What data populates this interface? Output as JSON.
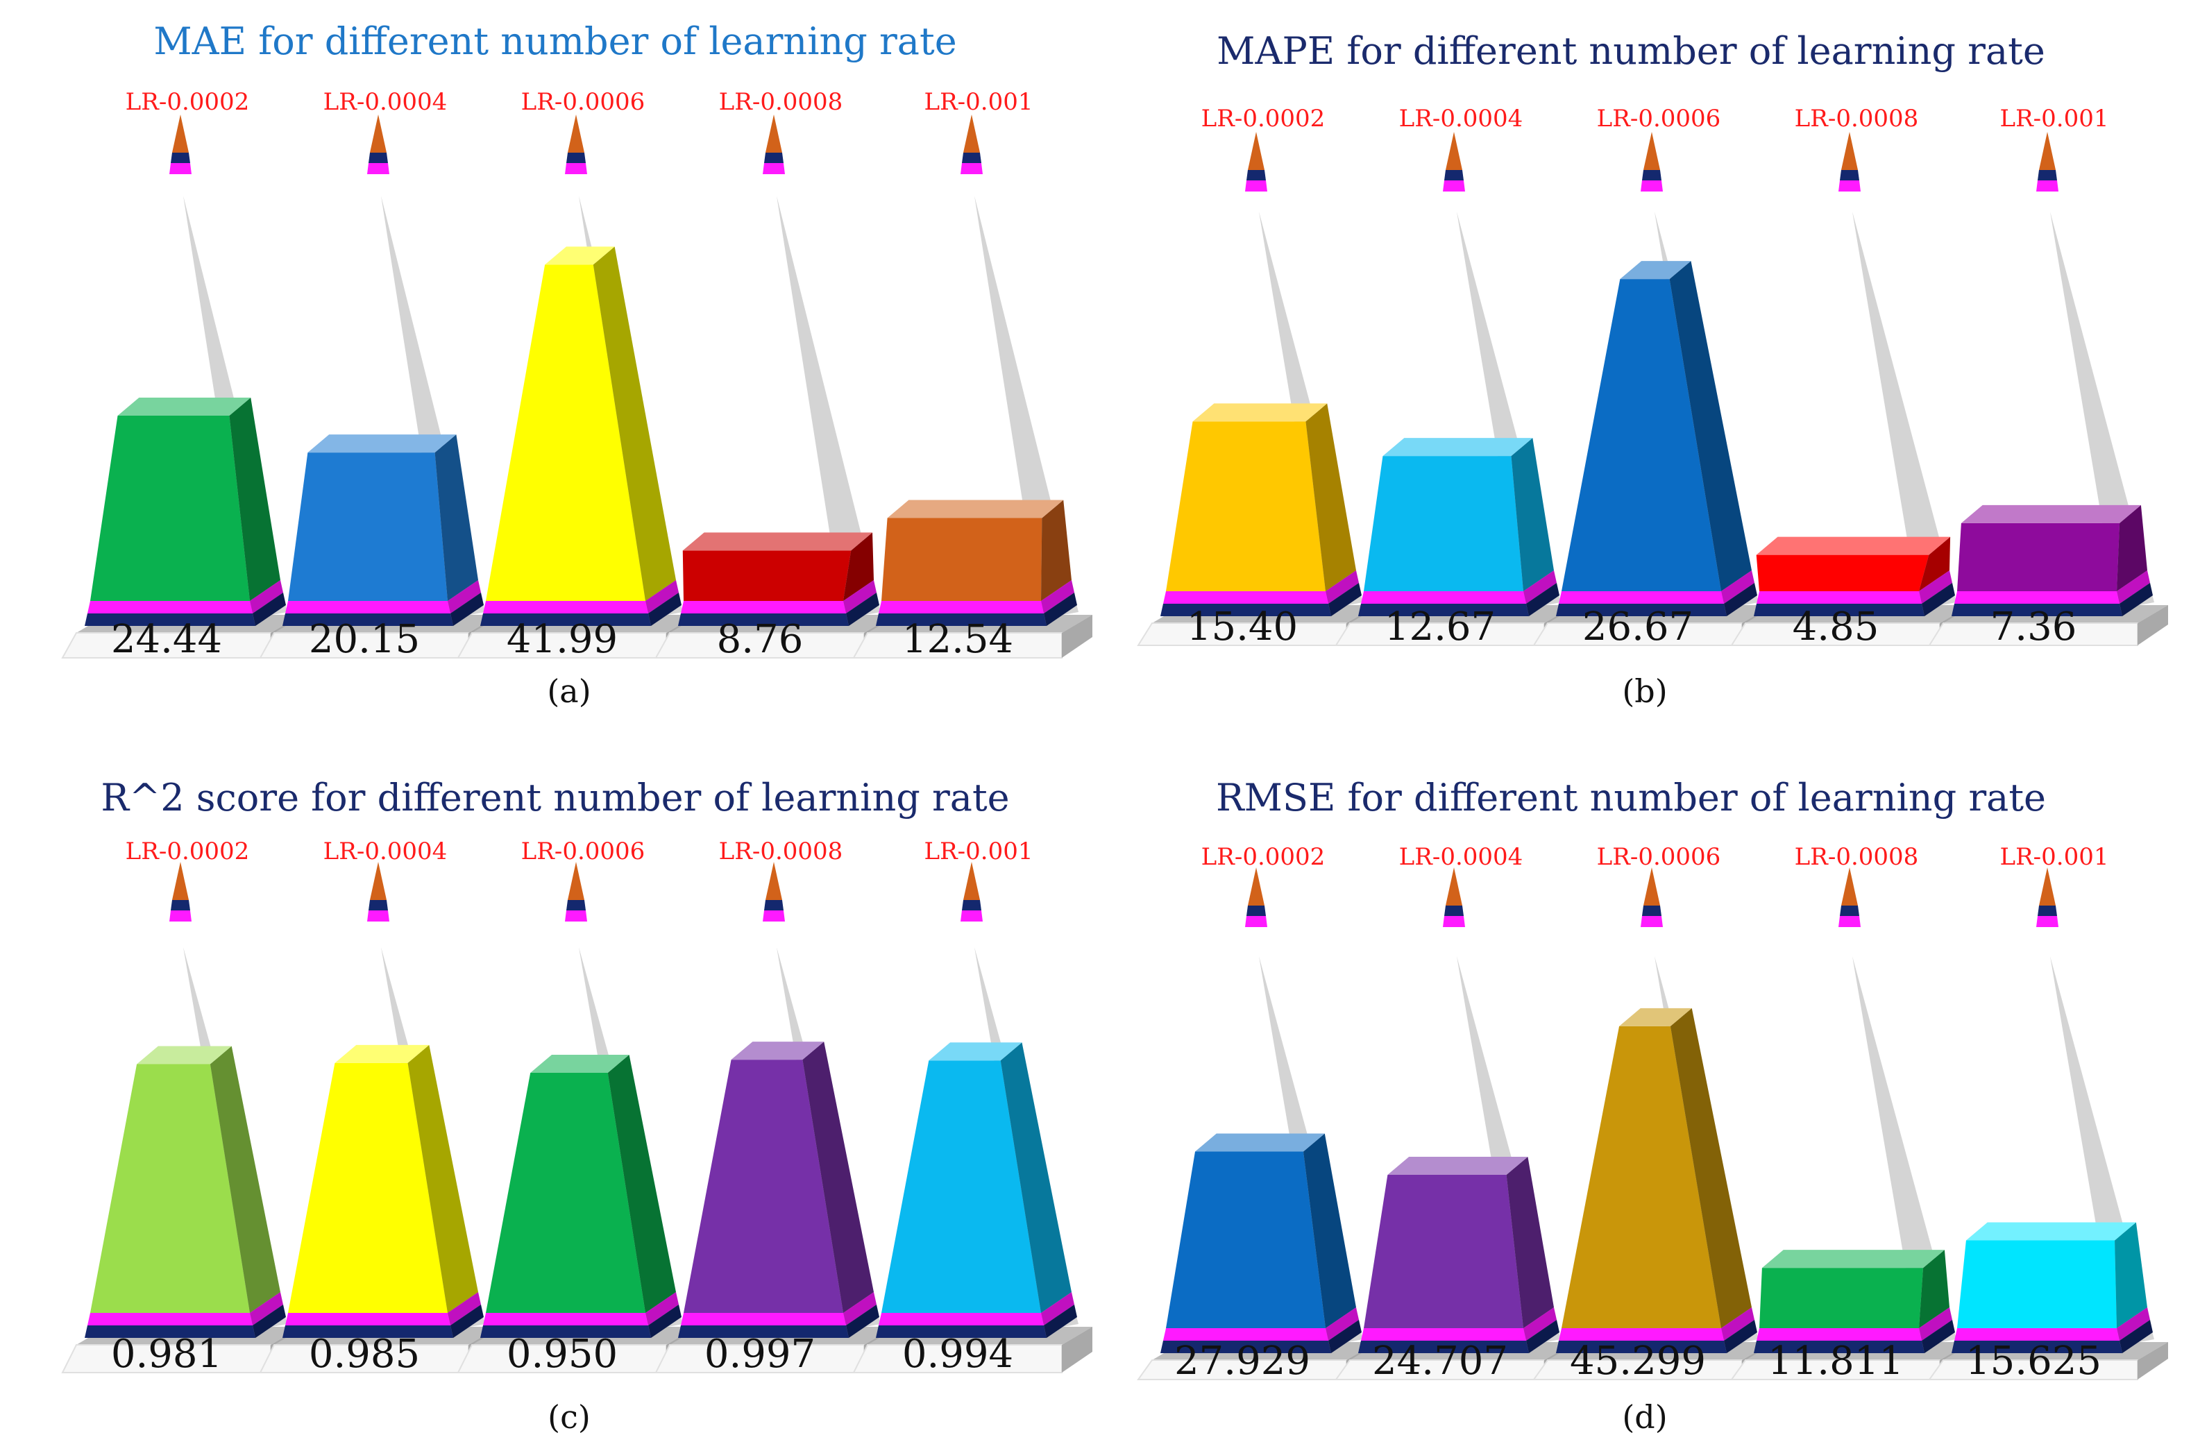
{
  "charts": [
    {
      "id": "a",
      "title": "MAE for different number of learning rate",
      "title_color": "#1f78c8",
      "caption": "(a)",
      "chart_data": {
        "type": "bar",
        "categories": [
          "LR-0.0002",
          "LR-0.0004",
          "LR-0.0006",
          "LR-0.0008",
          "LR-0.001"
        ],
        "values": [
          24.44,
          20.15,
          41.99,
          8.76,
          12.54
        ],
        "value_labels": [
          "24.44",
          "20.15",
          "41.99",
          "8.76",
          "12.54"
        ],
        "bar_colors": [
          "#0ab14f",
          "#1e7bd2",
          "#ffff00",
          "#cc0000",
          "#d2621a"
        ],
        "ylim": [
          0,
          50
        ],
        "title": "MAE for different number of learning rate"
      }
    },
    {
      "id": "b",
      "title": "MAPE for different number of learning rate",
      "title_color": "#1a2a6c",
      "caption": "(b)",
      "chart_data": {
        "type": "bar",
        "categories": [
          "LR-0.0002",
          "LR-0.0004",
          "LR-0.0006",
          "LR-0.0008",
          "LR-0.001"
        ],
        "values": [
          15.4,
          12.67,
          26.67,
          4.85,
          7.36
        ],
        "value_labels": [
          "15.40",
          "12.67",
          "26.67",
          "4.85",
          "7.36"
        ],
        "bar_colors": [
          "#ffc800",
          "#0ab9f0",
          "#0b6cc4",
          "#ff0000",
          "#8e0b9c"
        ],
        "ylim": [
          0,
          32
        ],
        "title": "MAPE for different number of learning rate"
      }
    },
    {
      "id": "c",
      "title": "R^2 score for different number of learning rate",
      "title_color": "#1a2a6c",
      "caption": "(c)",
      "chart_data": {
        "type": "bar",
        "categories": [
          "LR-0.0002",
          "LR-0.0004",
          "LR-0.0006",
          "LR-0.0008",
          "LR-0.001"
        ],
        "values": [
          0.981,
          0.985,
          0.95,
          0.997,
          0.994
        ],
        "value_labels": [
          "0.981",
          "0.985",
          "0.950",
          "0.997",
          "0.994"
        ],
        "bar_colors": [
          "#9bdd4c",
          "#ffff00",
          "#0ab14f",
          "#7630a8",
          "#0ab9f0"
        ],
        "ylim": [
          0,
          1.4
        ],
        "title": "R^2 score for different number of learning rate"
      }
    },
    {
      "id": "d",
      "title": "RMSE for different number of learning rate",
      "title_color": "#1a2a6c",
      "caption": "(d)",
      "chart_data": {
        "type": "bar",
        "categories": [
          "LR-0.0002",
          "LR-0.0004",
          "LR-0.0006",
          "LR-0.0008",
          "LR-0.001"
        ],
        "values": [
          27.929,
          24.707,
          45.299,
          11.811,
          15.625
        ],
        "value_labels": [
          "27.929",
          "24.707",
          "45.299",
          "11.811",
          "15.625"
        ],
        "bar_colors": [
          "#0b6cc4",
          "#7630a8",
          "#c9960a",
          "#0ab14f",
          "#00e5ff"
        ],
        "ylim": [
          0,
          55
        ],
        "title": "RMSE for different number of learning rate"
      }
    }
  ]
}
